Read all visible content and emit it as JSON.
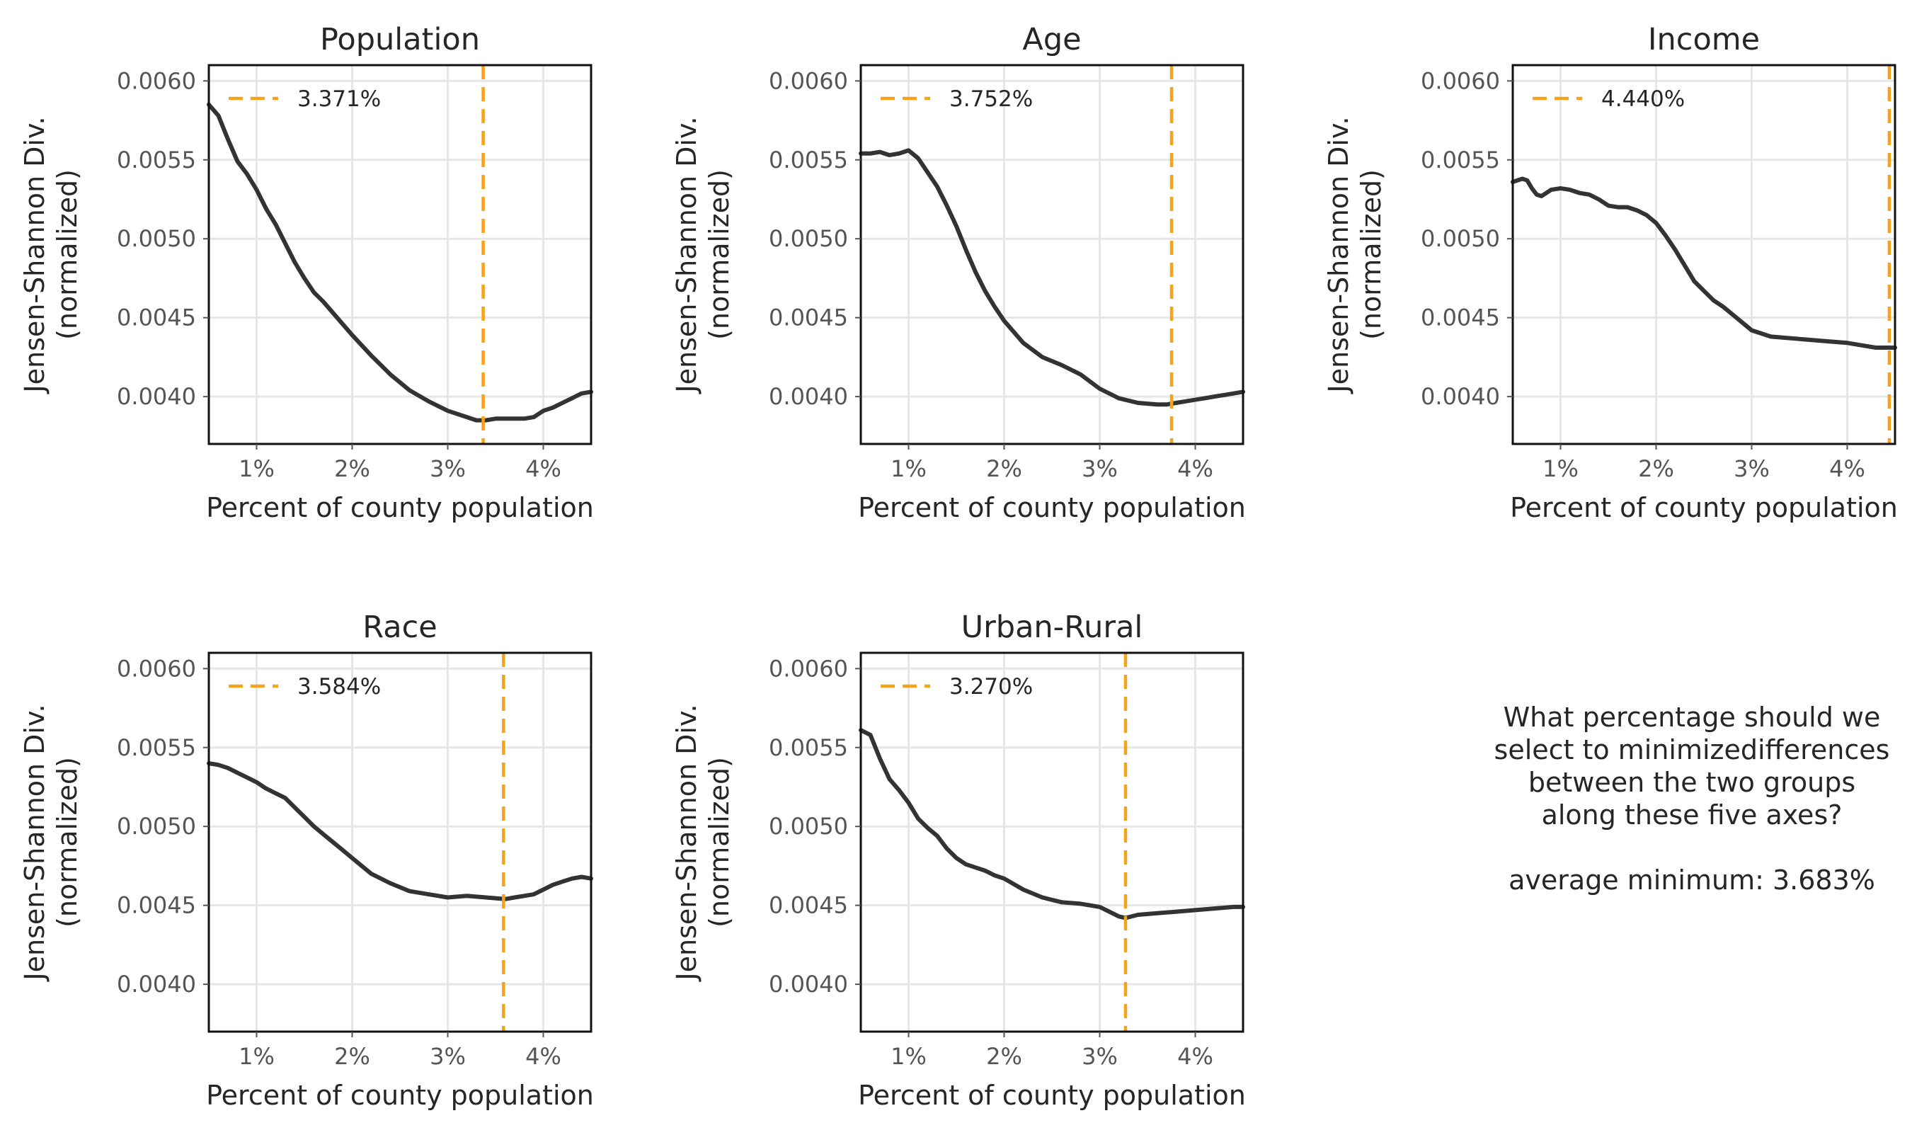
{
  "chart_data": [
    {
      "type": "line",
      "title": "Population",
      "xlabel": "Percent of county population",
      "ylabel": [
        "Jensen-Shannon Div.",
        "(normalized)"
      ],
      "xlim": [
        0.5,
        4.5
      ],
      "ylim": [
        0.0037,
        0.0061
      ],
      "xticks": [
        1,
        2,
        3,
        4
      ],
      "xtick_labels": [
        "1%",
        "2%",
        "3%",
        "4%"
      ],
      "yticks": [
        0.004,
        0.0045,
        0.005,
        0.0055,
        0.006
      ],
      "ytick_labels": [
        "0.0040",
        "0.0045",
        "0.0050",
        "0.0055",
        "0.0060"
      ],
      "grid": true,
      "legend_position": "top-left",
      "vline": {
        "x": 3.371,
        "label": "3.371%",
        "color": "#f5a21d"
      },
      "series": [
        {
          "x": [
            0.5,
            0.6,
            0.7,
            0.8,
            0.9,
            1.0,
            1.1,
            1.2,
            1.3,
            1.4,
            1.5,
            1.6,
            1.7,
            1.8,
            1.9,
            2.0,
            2.2,
            2.4,
            2.6,
            2.8,
            3.0,
            3.2,
            3.3,
            3.4,
            3.5,
            3.6,
            3.7,
            3.8,
            3.9,
            4.0,
            4.1,
            4.2,
            4.3,
            4.4,
            4.5
          ],
          "y": [
            0.00585,
            0.00578,
            0.00563,
            0.00549,
            0.00541,
            0.00531,
            0.00519,
            0.00509,
            0.00497,
            0.00485,
            0.00475,
            0.00466,
            0.0046,
            0.00453,
            0.00446,
            0.00439,
            0.00426,
            0.00414,
            0.00404,
            0.00397,
            0.00391,
            0.00387,
            0.00385,
            0.00385,
            0.00386,
            0.00386,
            0.00386,
            0.00386,
            0.00387,
            0.00391,
            0.00393,
            0.00396,
            0.00399,
            0.00402,
            0.00403
          ]
        }
      ]
    },
    {
      "type": "line",
      "title": "Age",
      "xlabel": "Percent of county population",
      "ylabel": [
        "Jensen-Shannon Div.",
        "(normalized)"
      ],
      "xlim": [
        0.5,
        4.5
      ],
      "ylim": [
        0.0037,
        0.0061
      ],
      "xticks": [
        1,
        2,
        3,
        4
      ],
      "xtick_labels": [
        "1%",
        "2%",
        "3%",
        "4%"
      ],
      "yticks": [
        0.004,
        0.0045,
        0.005,
        0.0055,
        0.006
      ],
      "ytick_labels": [
        "0.0040",
        "0.0045",
        "0.0050",
        "0.0055",
        "0.0060"
      ],
      "grid": true,
      "legend_position": "top-left",
      "vline": {
        "x": 3.752,
        "label": "3.752%",
        "color": "#f5a21d"
      },
      "series": [
        {
          "x": [
            0.5,
            0.6,
            0.7,
            0.8,
            0.9,
            1.0,
            1.1,
            1.2,
            1.3,
            1.4,
            1.5,
            1.6,
            1.7,
            1.8,
            1.9,
            2.0,
            2.2,
            2.4,
            2.6,
            2.8,
            3.0,
            3.2,
            3.4,
            3.6,
            3.7,
            3.8,
            3.9,
            4.0,
            4.1,
            4.2,
            4.3,
            4.4,
            4.5
          ],
          "y": [
            0.00554,
            0.00554,
            0.00555,
            0.00553,
            0.00554,
            0.00556,
            0.00551,
            0.00542,
            0.00533,
            0.00521,
            0.00508,
            0.00493,
            0.00479,
            0.00467,
            0.00457,
            0.00448,
            0.00434,
            0.00425,
            0.0042,
            0.00414,
            0.00405,
            0.00399,
            0.00396,
            0.00395,
            0.00395,
            0.00396,
            0.00397,
            0.00398,
            0.00399,
            0.004,
            0.00401,
            0.00402,
            0.00403
          ]
        }
      ]
    },
    {
      "type": "line",
      "title": "Income",
      "xlabel": "Percent of county population",
      "ylabel": [
        "Jensen-Shannon Div.",
        "(normalized)"
      ],
      "xlim": [
        0.5,
        4.5
      ],
      "ylim": [
        0.0037,
        0.0061
      ],
      "xticks": [
        1,
        2,
        3,
        4
      ],
      "xtick_labels": [
        "1%",
        "2%",
        "3%",
        "4%"
      ],
      "yticks": [
        0.004,
        0.0045,
        0.005,
        0.0055,
        0.006
      ],
      "ytick_labels": [
        "0.0040",
        "0.0045",
        "0.0050",
        "0.0055",
        "0.0060"
      ],
      "grid": true,
      "legend_position": "top-left",
      "vline": {
        "x": 4.44,
        "label": "4.440%",
        "color": "#f5a21d"
      },
      "series": [
        {
          "x": [
            0.5,
            0.55,
            0.6,
            0.65,
            0.7,
            0.75,
            0.8,
            0.85,
            0.9,
            1.0,
            1.1,
            1.2,
            1.3,
            1.4,
            1.5,
            1.6,
            1.7,
            1.8,
            1.9,
            2.0,
            2.1,
            2.2,
            2.3,
            2.4,
            2.5,
            2.6,
            2.7,
            2.8,
            3.0,
            3.2,
            3.4,
            3.6,
            3.8,
            4.0,
            4.2,
            4.3,
            4.4,
            4.5
          ],
          "y": [
            0.00536,
            0.00537,
            0.00538,
            0.00537,
            0.00532,
            0.00528,
            0.00527,
            0.00529,
            0.00531,
            0.00532,
            0.00531,
            0.00529,
            0.00528,
            0.00525,
            0.00521,
            0.0052,
            0.0052,
            0.00518,
            0.00515,
            0.0051,
            0.00502,
            0.00493,
            0.00483,
            0.00473,
            0.00467,
            0.00461,
            0.00457,
            0.00452,
            0.00442,
            0.00438,
            0.00437,
            0.00436,
            0.00435,
            0.00434,
            0.00432,
            0.00431,
            0.00431,
            0.00431
          ]
        }
      ]
    },
    {
      "type": "line",
      "title": "Race",
      "xlabel": "Percent of county population",
      "ylabel": [
        "Jensen-Shannon Div.",
        "(normalized)"
      ],
      "xlim": [
        0.5,
        4.5
      ],
      "ylim": [
        0.0037,
        0.0061
      ],
      "xticks": [
        1,
        2,
        3,
        4
      ],
      "xtick_labels": [
        "1%",
        "2%",
        "3%",
        "4%"
      ],
      "yticks": [
        0.004,
        0.0045,
        0.005,
        0.0055,
        0.006
      ],
      "ytick_labels": [
        "0.0040",
        "0.0045",
        "0.0050",
        "0.0055",
        "0.0060"
      ],
      "grid": true,
      "legend_position": "top-left",
      "vline": {
        "x": 3.584,
        "label": "3.584%",
        "color": "#f5a21d"
      },
      "series": [
        {
          "x": [
            0.5,
            0.6,
            0.7,
            0.8,
            0.9,
            1.0,
            1.1,
            1.2,
            1.3,
            1.4,
            1.5,
            1.6,
            1.7,
            1.8,
            1.9,
            2.0,
            2.2,
            2.4,
            2.6,
            2.8,
            3.0,
            3.2,
            3.4,
            3.6,
            3.7,
            3.8,
            3.9,
            4.0,
            4.1,
            4.2,
            4.3,
            4.4,
            4.5
          ],
          "y": [
            0.0054,
            0.00539,
            0.00537,
            0.00534,
            0.00531,
            0.00528,
            0.00524,
            0.00521,
            0.00518,
            0.00512,
            0.00506,
            0.005,
            0.00495,
            0.0049,
            0.00485,
            0.0048,
            0.0047,
            0.00464,
            0.00459,
            0.00457,
            0.00455,
            0.00456,
            0.00455,
            0.00454,
            0.00455,
            0.00456,
            0.00457,
            0.0046,
            0.00463,
            0.00465,
            0.00467,
            0.00468,
            0.00467
          ]
        }
      ]
    },
    {
      "type": "line",
      "title": "Urban-Rural",
      "xlabel": "Percent of county population",
      "ylabel": [
        "Jensen-Shannon Div.",
        "(normalized)"
      ],
      "xlim": [
        0.5,
        4.5
      ],
      "ylim": [
        0.0037,
        0.0061
      ],
      "xticks": [
        1,
        2,
        3,
        4
      ],
      "xtick_labels": [
        "1%",
        "2%",
        "3%",
        "4%"
      ],
      "yticks": [
        0.004,
        0.0045,
        0.005,
        0.0055,
        0.006
      ],
      "ytick_labels": [
        "0.0040",
        "0.0045",
        "0.0050",
        "0.0055",
        "0.0060"
      ],
      "grid": true,
      "legend_position": "top-left",
      "vline": {
        "x": 3.27,
        "label": "3.270%",
        "color": "#f5a21d"
      },
      "series": [
        {
          "x": [
            0.5,
            0.6,
            0.7,
            0.8,
            0.9,
            1.0,
            1.1,
            1.2,
            1.3,
            1.4,
            1.5,
            1.6,
            1.7,
            1.8,
            1.9,
            2.0,
            2.2,
            2.4,
            2.6,
            2.8,
            3.0,
            3.1,
            3.2,
            3.27,
            3.4,
            3.6,
            3.8,
            4.0,
            4.2,
            4.4,
            4.5
          ],
          "y": [
            0.00561,
            0.00558,
            0.00543,
            0.0053,
            0.00523,
            0.00515,
            0.00505,
            0.00499,
            0.00494,
            0.00486,
            0.0048,
            0.00476,
            0.00474,
            0.00472,
            0.00469,
            0.00467,
            0.0046,
            0.00455,
            0.00452,
            0.00451,
            0.00449,
            0.00446,
            0.00443,
            0.00442,
            0.00444,
            0.00445,
            0.00446,
            0.00447,
            0.00448,
            0.00449,
            0.00449
          ]
        }
      ]
    }
  ],
  "note": {
    "question_lines": [
      "What percentage should we",
      "select to minimizedifferences",
      "between the two groups",
      "along these five axes?"
    ],
    "average": "average minimum: 3.683%"
  }
}
